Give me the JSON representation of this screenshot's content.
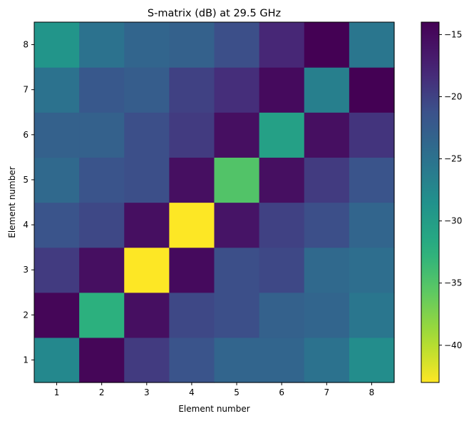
{
  "chart_data": {
    "type": "heatmap",
    "title": "S-matrix (dB) at 29.5 GHz",
    "xlabel": "Element number",
    "ylabel": "Element number",
    "x": [
      1,
      2,
      3,
      4,
      5,
      6,
      7,
      8
    ],
    "y": [
      1,
      2,
      3,
      4,
      5,
      6,
      7,
      8
    ],
    "values": [
      [
        -27.5,
        -14.5,
        -19.5,
        -21.5,
        -23.5,
        -23.5,
        -25.0,
        -28.0
      ],
      [
        -14.5,
        -32.5,
        -15.5,
        -20.5,
        -21.0,
        -23.0,
        -23.5,
        -25.5
      ],
      [
        -19.5,
        -15.5,
        -43.0,
        -15.0,
        -21.0,
        -20.5,
        -24.0,
        -24.5
      ],
      [
        -21.5,
        -20.5,
        -15.5,
        -43.0,
        -16.0,
        -20.0,
        -21.0,
        -23.5
      ],
      [
        -24.0,
        -21.5,
        -21.0,
        -15.5,
        -35.0,
        -15.5,
        -19.5,
        -21.5
      ],
      [
        -23.0,
        -23.0,
        -21.0,
        -19.5,
        -15.5,
        -30.5,
        -15.5,
        -19.0
      ],
      [
        -25.0,
        -22.0,
        -22.5,
        -20.0,
        -18.5,
        -15.0,
        -26.5,
        -14.0
      ],
      [
        -29.0,
        -25.0,
        -23.5,
        -23.0,
        -21.0,
        -18.0,
        -14.0,
        -25.5
      ]
    ],
    "colormap": "viridis_r",
    "colorbar": {
      "min": -43.0,
      "max": -14.0,
      "ticks": [
        -40,
        -35,
        -30,
        -25,
        -20,
        -15
      ]
    },
    "grid": false
  }
}
